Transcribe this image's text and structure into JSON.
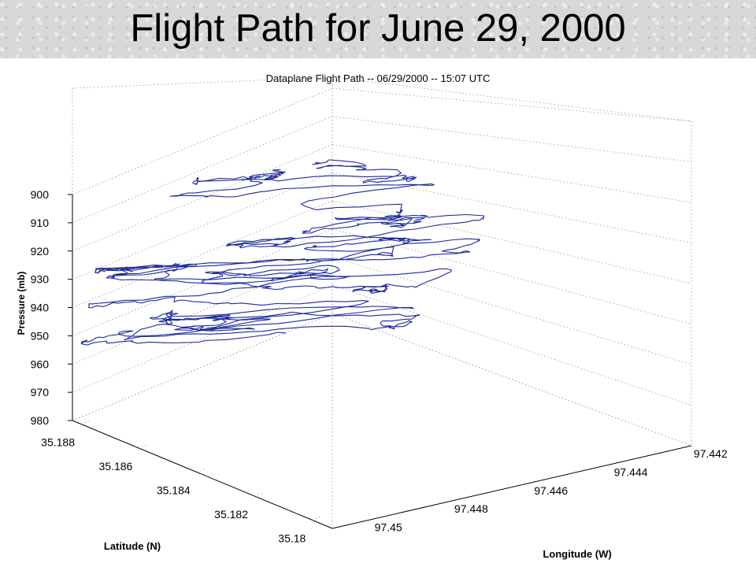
{
  "slide": {
    "title": "Flight Path for June 29, 2000"
  },
  "chart_data": {
    "type": "line",
    "title": "Dataplane Flight Path -- 06/29/2000 -- 15:07 UTC",
    "zlabel": "Pressure (mb)",
    "ylabel": "Latitude (N)",
    "xlabel": "Longitude (W)",
    "zticks": [
      "900",
      "910",
      "920",
      "930",
      "940",
      "950",
      "960",
      "970",
      "980"
    ],
    "yticks": [
      "35.188",
      "35.186",
      "35.184",
      "35.182",
      "35.18"
    ],
    "xticks": [
      "97.442",
      "97.444",
      "97.446",
      "97.448",
      "97.45"
    ],
    "zlim": [
      900,
      980
    ],
    "ylim": [
      35.18,
      35.188
    ],
    "xlim": [
      97.442,
      97.45
    ],
    "grid": true,
    "line_color": "#1c2a9c"
  }
}
